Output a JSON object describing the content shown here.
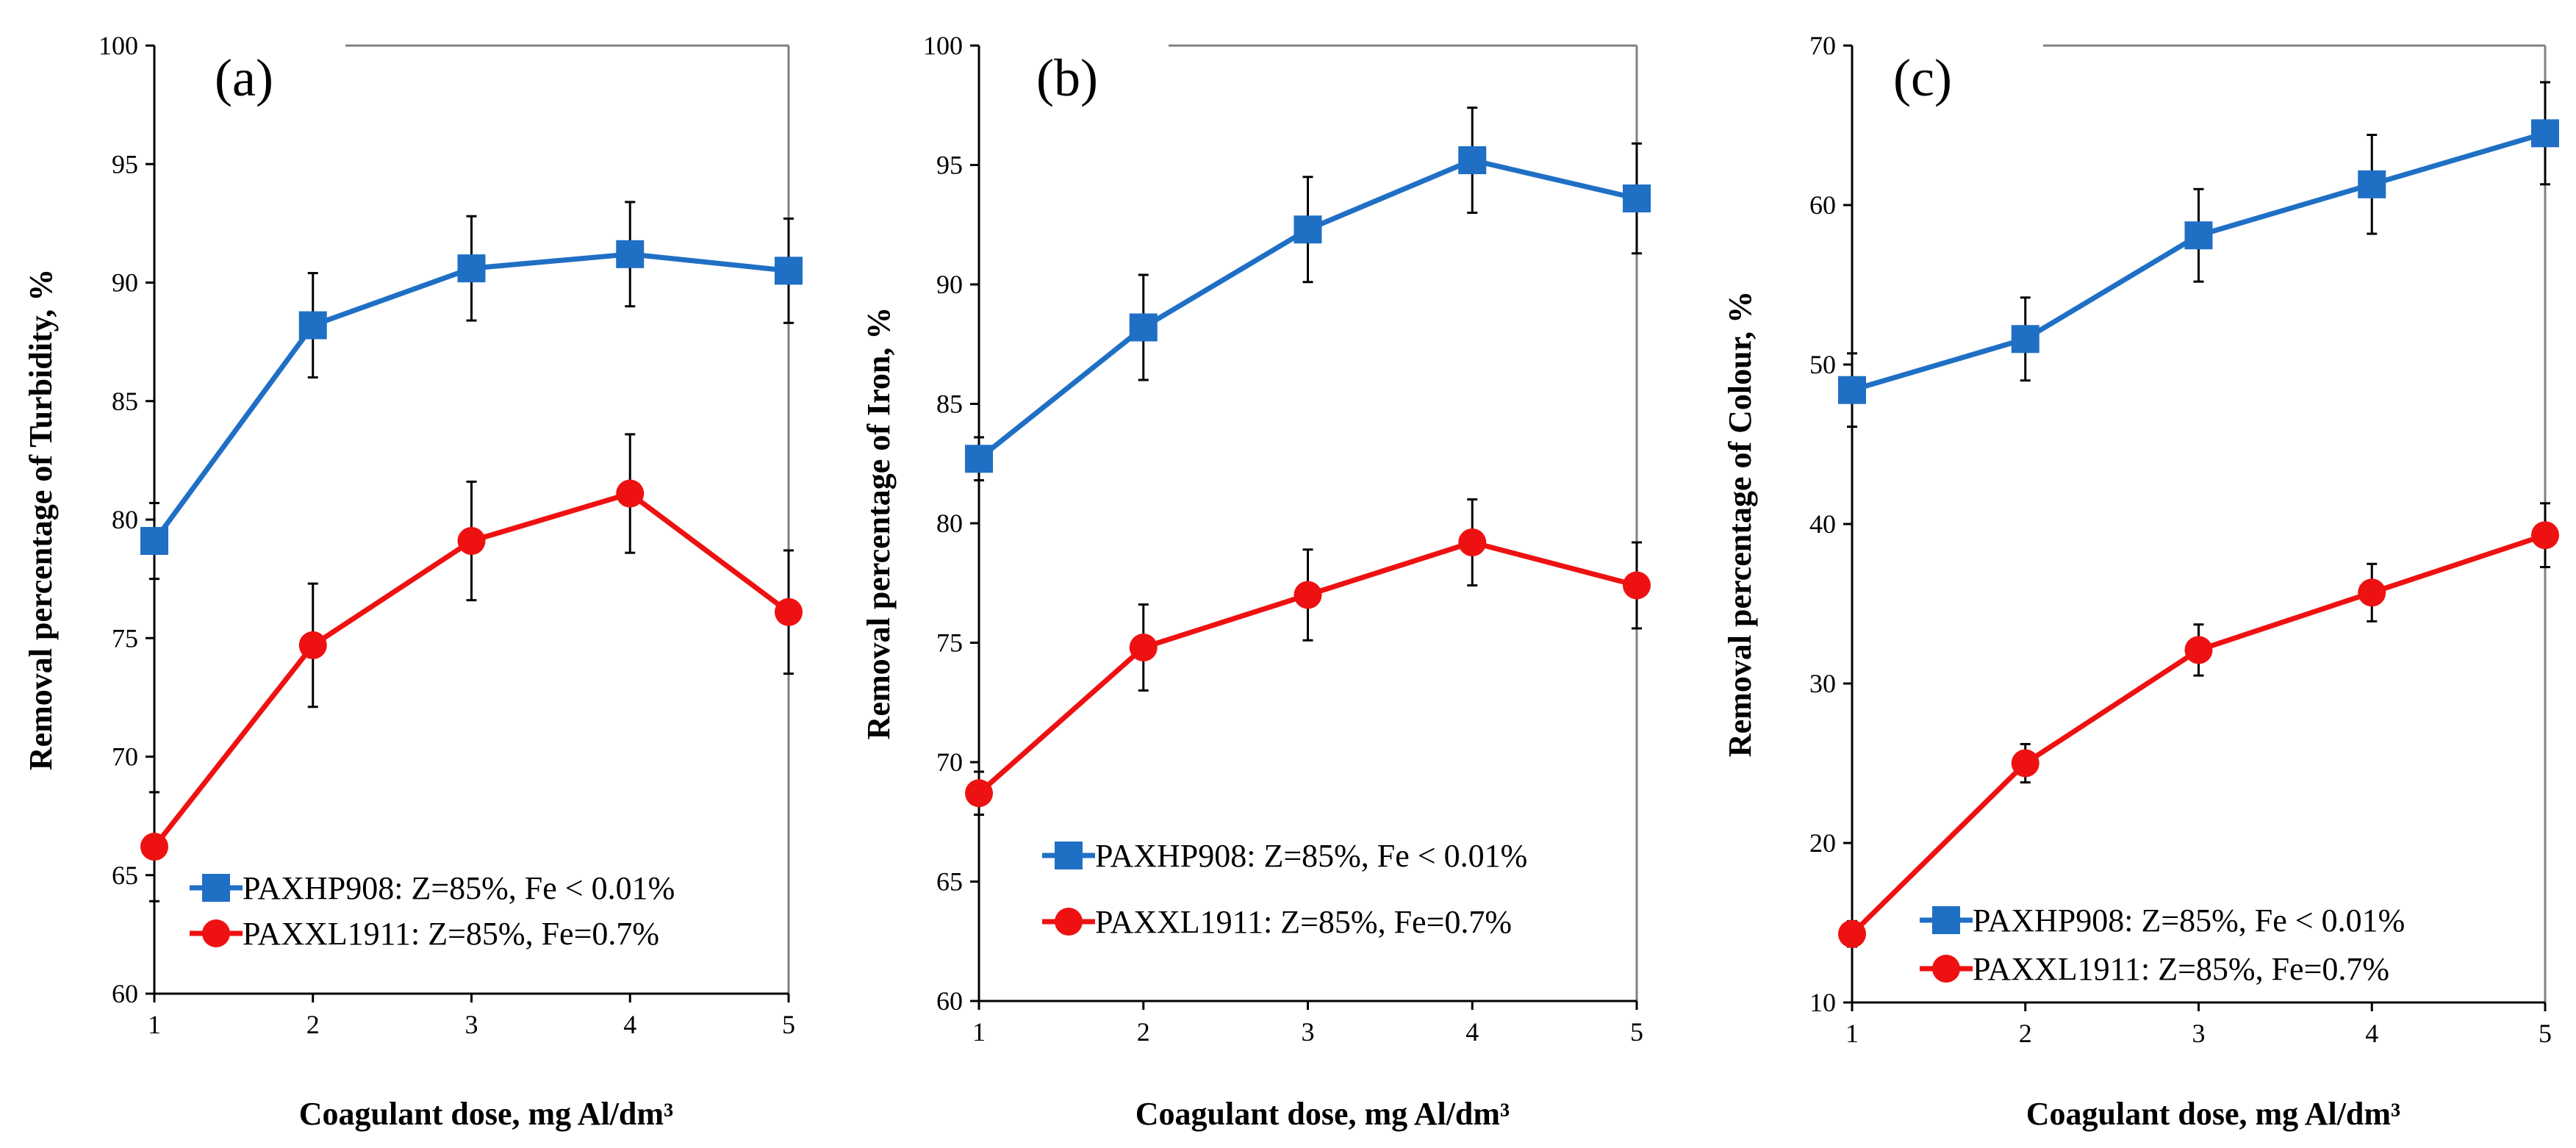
{
  "figure": {
    "colors": {
      "blue": "#1f6fc5",
      "red": "#ee1111",
      "axis": "#000000",
      "frame": "#808080"
    }
  },
  "chart_data": [
    {
      "type": "line",
      "panel_label": "(a)",
      "xlabel": "Coagulant dose, mg Al/dm³",
      "ylabel": "Removal percentage of Turbidity, %",
      "xlim": [
        1,
        5
      ],
      "ylim": [
        60,
        100
      ],
      "xticks": [
        "1",
        "2",
        "3",
        "4",
        "5"
      ],
      "yticks": [
        "60",
        "65",
        "70",
        "75",
        "80",
        "85",
        "90",
        "95",
        "100"
      ],
      "legend_position": "lower-center",
      "x": [
        1,
        2,
        3,
        4,
        5
      ],
      "series": [
        {
          "name": "PAXHP908: Z=85%, Fe < 0.01%",
          "marker": "square",
          "color": "#1f6fc5",
          "values": [
            79.1,
            88.2,
            90.6,
            91.2,
            90.5
          ],
          "errors": [
            1.6,
            2.2,
            2.2,
            2.2,
            2.2
          ]
        },
        {
          "name": "PAXXL1911: Z=85%, Fe=0.7%",
          "marker": "circle",
          "color": "#ee1111",
          "values": [
            66.2,
            74.7,
            79.1,
            81.1,
            76.1
          ],
          "errors": [
            2.3,
            2.6,
            2.5,
            2.5,
            2.6
          ]
        }
      ]
    },
    {
      "type": "line",
      "panel_label": "(b)",
      "xlabel": "Coagulant dose, mg Al/dm³",
      "ylabel": "Removal percentage of Iron, %",
      "xlim": [
        1,
        5
      ],
      "ylim": [
        60,
        100
      ],
      "xticks": [
        "1",
        "2",
        "3",
        "4",
        "5"
      ],
      "yticks": [
        "60",
        "65",
        "70",
        "75",
        "80",
        "85",
        "90",
        "95",
        "100"
      ],
      "legend_position": "lower-center",
      "x": [
        1,
        2,
        3,
        4,
        5
      ],
      "series": [
        {
          "name": "PAXHP908: Z=85%, Fe < 0.01%",
          "marker": "square",
          "color": "#1f6fc5",
          "values": [
            82.7,
            88.2,
            92.3,
            95.2,
            93.6
          ],
          "errors": [
            0.9,
            2.2,
            2.2,
            2.2,
            2.3
          ]
        },
        {
          "name": "PAXXL1911: Z=85%, Fe=0.7%",
          "marker": "circle",
          "color": "#ee1111",
          "values": [
            68.7,
            74.8,
            77.0,
            79.2,
            77.4
          ],
          "errors": [
            0.9,
            1.8,
            1.9,
            1.8,
            1.8
          ]
        }
      ]
    },
    {
      "type": "line",
      "panel_label": "(c)",
      "xlabel": "Coagulant dose, mg Al/dm³",
      "ylabel": "Removal percentage of Colour, %",
      "xlim": [
        1,
        5
      ],
      "ylim": [
        10,
        70
      ],
      "xticks": [
        "1",
        "2",
        "3",
        "4",
        "5"
      ],
      "yticks": [
        "10",
        "20",
        "30",
        "40",
        "50",
        "60",
        "70"
      ],
      "legend_position": "lower-center",
      "x": [
        1,
        2,
        3,
        4,
        5
      ],
      "series": [
        {
          "name": "PAXHP908: Z=85%, Fe < 0.01%",
          "marker": "square",
          "color": "#1f6fc5",
          "values": [
            48.4,
            51.6,
            58.1,
            61.3,
            64.5
          ],
          "errors": [
            2.3,
            2.6,
            2.9,
            3.1,
            3.2
          ]
        },
        {
          "name": "PAXXL1911: Z=85%, Fe=0.7%",
          "marker": "circle",
          "color": "#ee1111",
          "values": [
            14.3,
            25.0,
            32.1,
            35.7,
            39.3
          ],
          "errors": [
            0.8,
            1.2,
            1.6,
            1.8,
            2.0
          ]
        }
      ]
    }
  ]
}
